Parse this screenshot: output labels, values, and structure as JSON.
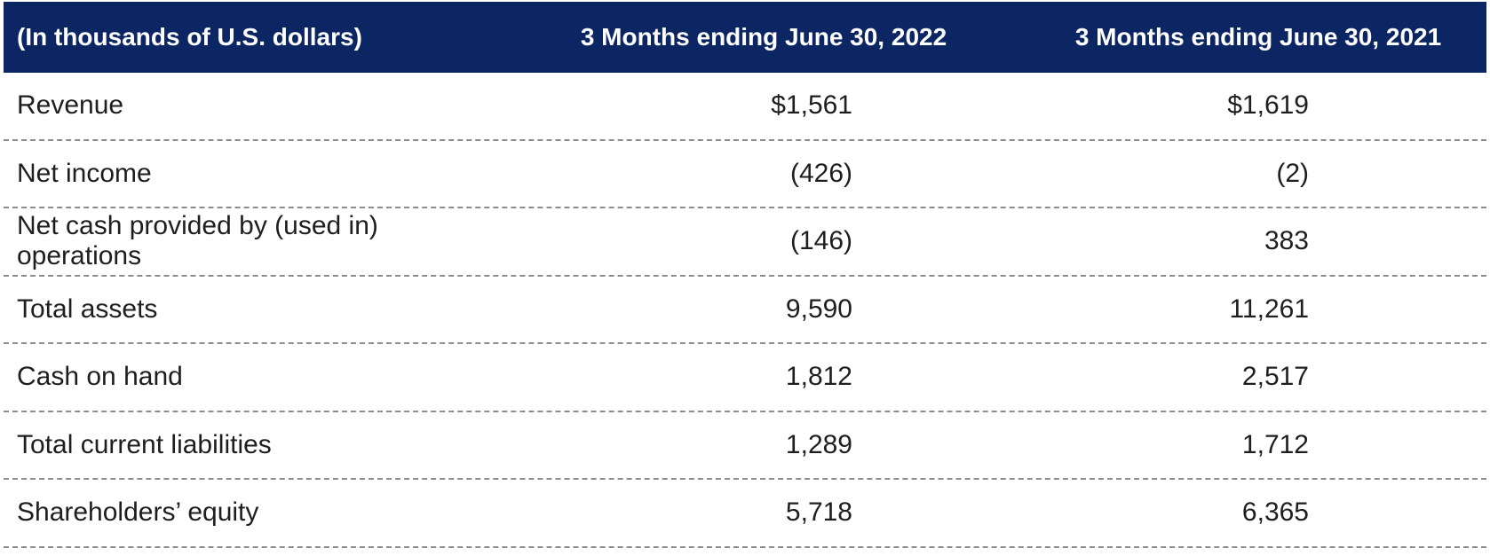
{
  "chart_data": {
    "type": "table",
    "unit_label": "(In thousands of U.S. dollars)",
    "columns": [
      "3 Months ending June 30, 2022",
      "3 Months ending June 30, 2021"
    ],
    "rows": [
      {
        "label": "Revenue",
        "values": [
          "$1,561",
          "$1,619"
        ]
      },
      {
        "label": "Net income",
        "values": [
          "(426)",
          "(2)"
        ]
      },
      {
        "label": "Net cash provided by (used in) operations",
        "values": [
          "(146)",
          "383"
        ]
      },
      {
        "label": "Total assets",
        "values": [
          "9,590",
          "11,261"
        ]
      },
      {
        "label": "Cash on hand",
        "values": [
          "1,812",
          "2,517"
        ]
      },
      {
        "label": "Total current liabilities",
        "values": [
          "1,289",
          "1,712"
        ]
      },
      {
        "label": "Shareholders’ equity",
        "values": [
          "5,718",
          "6,365"
        ]
      }
    ],
    "layout": {
      "header_background": "#0c2563",
      "header_text_color": "#ffffff",
      "body_text_color": "#1e1e1e",
      "divider_color": "#8d8d8d",
      "divider_style": "dashed"
    }
  }
}
